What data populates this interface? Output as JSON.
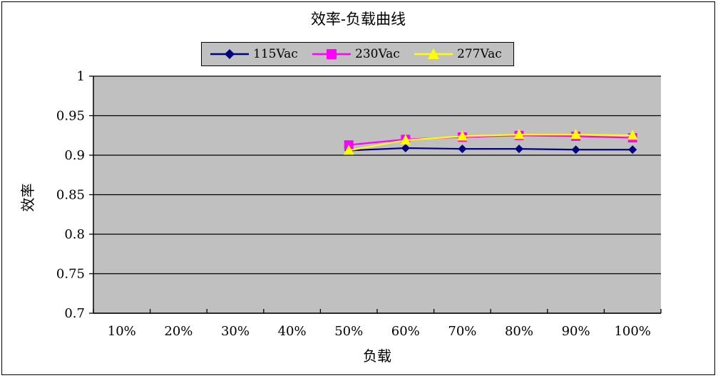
{
  "chart_data": {
    "type": "line",
    "title": "效率-负载曲线",
    "xlabel": "负载",
    "ylabel": "效率",
    "categories": [
      "10%",
      "20%",
      "30%",
      "40%",
      "50%",
      "60%",
      "70%",
      "80%",
      "90%",
      "100%"
    ],
    "ylim": [
      0.7,
      1
    ],
    "yticks": [
      "0.7",
      "0.75",
      "0.8",
      "0.85",
      "0.9",
      "0.95",
      "1"
    ],
    "grid": "horizontal",
    "legend_position": "top",
    "plot_background": "#c0c0c0",
    "series": [
      {
        "name": "115Vac",
        "color": "#000080",
        "marker": "diamond",
        "values": [
          null,
          null,
          null,
          null,
          0.906,
          0.909,
          0.908,
          0.908,
          0.907,
          0.907
        ]
      },
      {
        "name": "230Vac",
        "color": "#ff00ff",
        "marker": "square",
        "values": [
          null,
          null,
          null,
          null,
          0.913,
          0.92,
          0.923,
          0.925,
          0.924,
          0.922
        ]
      },
      {
        "name": "277Vac",
        "color": "#ffff00",
        "marker": "triangle",
        "values": [
          null,
          null,
          null,
          null,
          0.906,
          0.919,
          0.924,
          0.926,
          0.926,
          0.925
        ]
      }
    ]
  }
}
